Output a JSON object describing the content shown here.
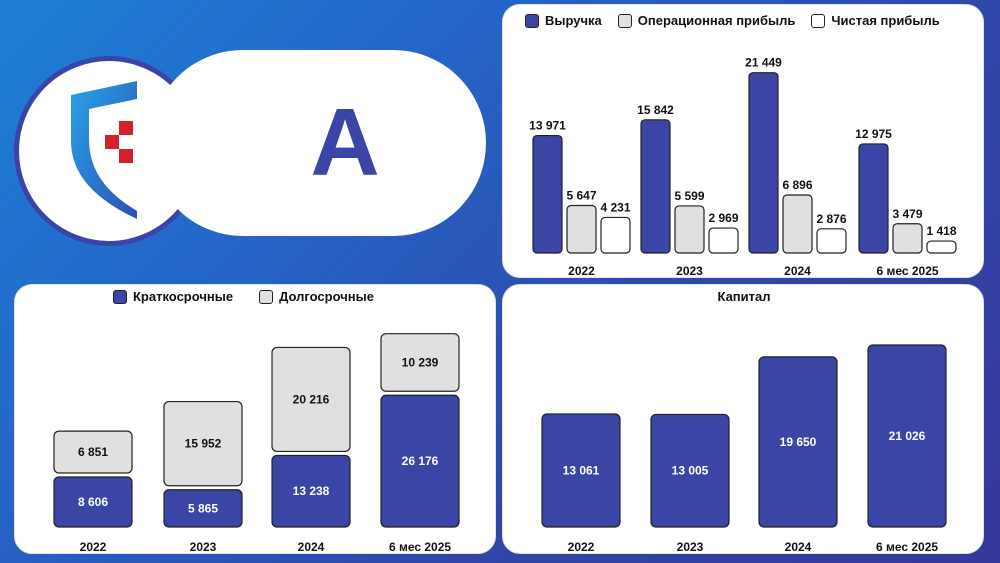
{
  "brand": {
    "rating_letter": "A",
    "logo_name": "company-logo"
  },
  "colors": {
    "primary": "#3a45a6",
    "secondary": "#e0e0e0",
    "white": "#ffffff",
    "outline": "#222222"
  },
  "chart_data": [
    {
      "type": "bar",
      "title": "",
      "legend": [
        "Выручка",
        "Операционная прибыль",
        "Чистая прибыль"
      ],
      "categories": [
        "2022",
        "2023",
        "2024",
        "6 мес 2025"
      ],
      "series": [
        {
          "name": "Выручка",
          "values": [
            13971,
            15842,
            21449,
            12975
          ],
          "labels": [
            "13 971",
            "15 842",
            "21 449",
            "12 975"
          ]
        },
        {
          "name": "Операционная прибыль",
          "values": [
            5647,
            5599,
            6896,
            3479
          ],
          "labels": [
            "5 647",
            "5 599",
            "6 896",
            "3 479"
          ]
        },
        {
          "name": "Чистая прибыль",
          "values": [
            4231,
            2969,
            2876,
            1418
          ],
          "labels": [
            "4 231",
            "2 969",
            "2 876",
            "1 418"
          ]
        }
      ],
      "ylim": [
        0,
        22000
      ]
    },
    {
      "type": "bar",
      "stacked": true,
      "title": "",
      "legend": [
        "Краткосрочные",
        "Долгосрочные"
      ],
      "categories": [
        "2022",
        "2023",
        "2024",
        "6 мес 2025"
      ],
      "series": [
        {
          "name": "Краткосрочные",
          "values": [
            8606,
            5865,
            13238,
            26176
          ],
          "labels": [
            "8 606",
            "5 865",
            "13 238",
            "26 176"
          ]
        },
        {
          "name": "Долгосрочные",
          "values": [
            6851,
            15952,
            20216,
            10239
          ],
          "labels": [
            "6 851",
            "15 952",
            "20 216",
            "10 239"
          ]
        }
      ],
      "ylim": [
        0,
        38000
      ]
    },
    {
      "type": "bar",
      "title": "Капитал",
      "categories": [
        "2022",
        "2023",
        "2024",
        "6 мес 2025"
      ],
      "series": [
        {
          "name": "Капитал",
          "values": [
            13061,
            13005,
            19650,
            21026
          ],
          "labels": [
            "13 061",
            "13 005",
            "19 650",
            "21 026"
          ]
        }
      ],
      "ylim": [
        0,
        22500
      ]
    }
  ]
}
